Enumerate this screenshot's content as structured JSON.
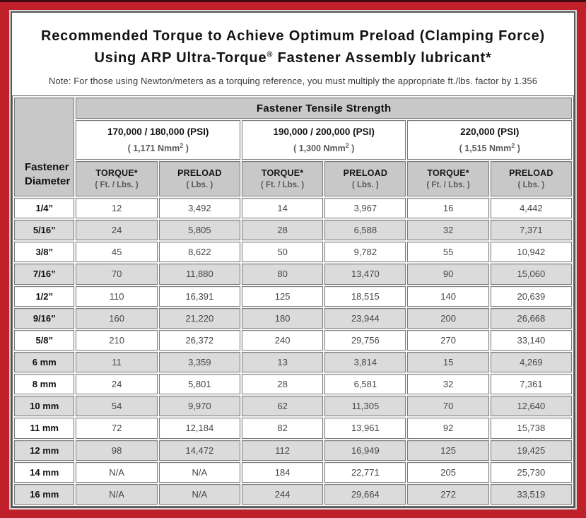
{
  "colors": {
    "frame_red": "#c0202a",
    "top_edge_strip": "#400a0e",
    "panel_border": "#56565a",
    "panel_outline": "#d8d8d8",
    "header_gray": "#c8c8c8",
    "row_stripe_gray": "#dbdbdb",
    "cell_border": "#7d7d7d"
  },
  "title": {
    "line1": "Recommended Torque to Achieve Optimum Preload (Clamping Force)",
    "line2_prefix": "Using ARP Ultra-Torque",
    "line2_sup": "®",
    "line2_suffix": " Fastener Assembly lubricant*",
    "note": "Note: For those using Newton/meters as a torquing reference, you must multiply the appropriate ft./lbs. factor by 1.356"
  },
  "table": {
    "corner_header": "Fastener Diameter",
    "top_header": "Fastener Tensile Strength",
    "strength_groups": [
      {
        "psi": "170,000 / 180,000 (PSI)",
        "nmm_prefix": "( 1,171 Nmm",
        "nmm_sup": "2",
        "nmm_suffix": " )"
      },
      {
        "psi": "190,000 / 200,000 (PSI)",
        "nmm_prefix": "( 1,300 Nmm",
        "nmm_sup": "2",
        "nmm_suffix": " )"
      },
      {
        "psi": "220,000 (PSI)",
        "nmm_prefix": "( 1,515 Nmm",
        "nmm_sup": "2",
        "nmm_suffix": " )"
      }
    ],
    "col_headers": {
      "torque_label": "TORQUE*",
      "torque_unit": "( Ft. / Lbs. )",
      "preload_label": "PRELOAD",
      "preload_unit": "( Lbs. )"
    },
    "rows": [
      {
        "diameter": "1/4”",
        "values": [
          "12",
          "3,492",
          "14",
          "3,967",
          "16",
          "4,442"
        ]
      },
      {
        "diameter": "5/16”",
        "values": [
          "24",
          "5,805",
          "28",
          "6,588",
          "32",
          "7,371"
        ]
      },
      {
        "diameter": "3/8”",
        "values": [
          "45",
          "8,622",
          "50",
          "9,782",
          "55",
          "10,942"
        ]
      },
      {
        "diameter": "7/16”",
        "values": [
          "70",
          "11,880",
          "80",
          "13,470",
          "90",
          "15,060"
        ]
      },
      {
        "diameter": "1/2”",
        "values": [
          "110",
          "16,391",
          "125",
          "18,515",
          "140",
          "20,639"
        ]
      },
      {
        "diameter": "9/16”",
        "values": [
          "160",
          "21,220",
          "180",
          "23,944",
          "200",
          "26,668"
        ]
      },
      {
        "diameter": "5/8”",
        "values": [
          "210",
          "26,372",
          "240",
          "29,756",
          "270",
          "33,140"
        ]
      },
      {
        "diameter": "6 mm",
        "values": [
          "11",
          "3,359",
          "13",
          "3,814",
          "15",
          "4,269"
        ]
      },
      {
        "diameter": "8 mm",
        "values": [
          "24",
          "5,801",
          "28",
          "6,581",
          "32",
          "7,361"
        ]
      },
      {
        "diameter": "10 mm",
        "values": [
          "54",
          "9,970",
          "62",
          "11,305",
          "70",
          "12,640"
        ]
      },
      {
        "diameter": "11 mm",
        "values": [
          "72",
          "12,184",
          "82",
          "13,961",
          "92",
          "15,738"
        ]
      },
      {
        "diameter": "12 mm",
        "values": [
          "98",
          "14,472",
          "112",
          "16,949",
          "125",
          "19,425"
        ]
      },
      {
        "diameter": "14 mm",
        "values": [
          "N/A",
          "N/A",
          "184",
          "22,771",
          "205",
          "25,730"
        ]
      },
      {
        "diameter": "16 mm",
        "values": [
          "N/A",
          "N/A",
          "244",
          "29,664",
          "272",
          "33,519"
        ]
      }
    ]
  }
}
